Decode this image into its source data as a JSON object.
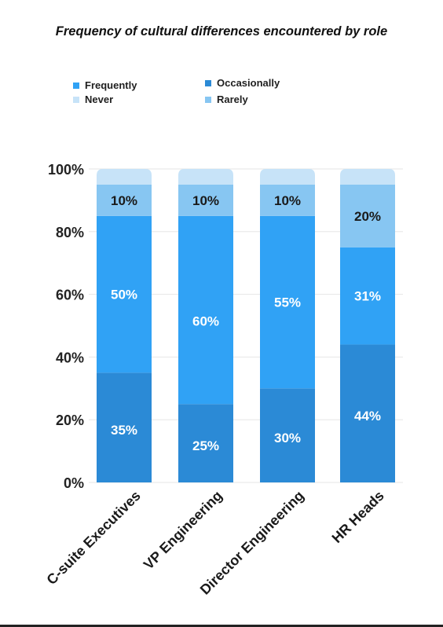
{
  "chart_data": {
    "type": "bar",
    "stacked": true,
    "percent_stacked": true,
    "title": "Frequency of cultural differences encountered by role",
    "xlabel": "",
    "ylabel": "",
    "ylim": [
      0,
      100
    ],
    "y_ticks": [
      "0%",
      "20%",
      "40%",
      "60%",
      "80%",
      "100%"
    ],
    "grid": true,
    "legend_position": "top-left",
    "categories": [
      "C-suite Executives",
      "VP Engineering",
      "Director Engineering",
      "HR Heads"
    ],
    "series": [
      {
        "name": "Occasionally",
        "color": "#2b8ad6",
        "values": [
          35,
          25,
          30,
          44
        ],
        "labels": [
          "35%",
          "25%",
          "30%",
          "44%"
        ]
      },
      {
        "name": "Frequently",
        "color": "#30a2f5",
        "values": [
          50,
          60,
          55,
          31
        ],
        "labels": [
          "50%",
          "60%",
          "55%",
          "31%"
        ]
      },
      {
        "name": "Rarely",
        "color": "#87c6f2",
        "values": [
          10,
          10,
          10,
          20
        ],
        "labels": [
          "10%",
          "10%",
          "10%",
          "20%"
        ]
      },
      {
        "name": "Never",
        "color": "#c7e3f8",
        "values": [
          5,
          5,
          5,
          5
        ],
        "labels": [
          "",
          "",
          "",
          ""
        ]
      }
    ]
  },
  "legend": {
    "frequently": {
      "label": "Frequently",
      "color": "#30a2f5"
    },
    "occasionally": {
      "label": "Occasionally",
      "color": "#2b8ad6"
    },
    "never": {
      "label": "Never",
      "color": "#c7e3f8"
    },
    "rarely": {
      "label": "Rarely",
      "color": "#87c6f2"
    }
  }
}
